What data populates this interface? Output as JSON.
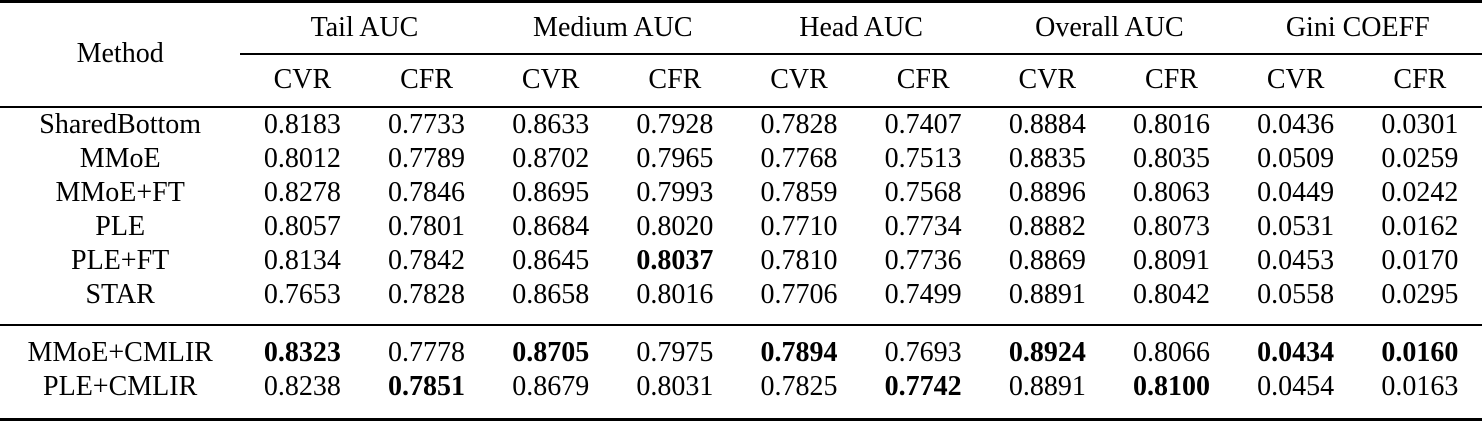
{
  "table": {
    "corner_header": "Method",
    "groups": [
      {
        "label": "Tail AUC"
      },
      {
        "label": "Medium AUC"
      },
      {
        "label": "Head AUC"
      },
      {
        "label": "Overall AUC"
      },
      {
        "label": "Gini COEFF"
      }
    ],
    "subheaders": [
      "CVR",
      "CFR",
      "CVR",
      "CFR",
      "CVR",
      "CFR",
      "CVR",
      "CFR",
      "CVR",
      "CFR"
    ],
    "sections": [
      {
        "rows": [
          {
            "method": "SharedBottom",
            "cells": [
              "0.8183",
              "0.7733",
              "0.8633",
              "0.7928",
              "0.7828",
              "0.7407",
              "0.8884",
              "0.8016",
              "0.0436",
              "0.0301"
            ],
            "bold": []
          },
          {
            "method": "MMoE",
            "cells": [
              "0.8012",
              "0.7789",
              "0.8702",
              "0.7965",
              "0.7768",
              "0.7513",
              "0.8835",
              "0.8035",
              "0.0509",
              "0.0259"
            ],
            "bold": []
          },
          {
            "method": "MMoE+FT",
            "cells": [
              "0.8278",
              "0.7846",
              "0.8695",
              "0.7993",
              "0.7859",
              "0.7568",
              "0.8896",
              "0.8063",
              "0.0449",
              "0.0242"
            ],
            "bold": []
          },
          {
            "method": "PLE",
            "cells": [
              "0.8057",
              "0.7801",
              "0.8684",
              "0.8020",
              "0.7710",
              "0.7734",
              "0.8882",
              "0.8073",
              "0.0531",
              "0.0162"
            ],
            "bold": []
          },
          {
            "method": "PLE+FT",
            "cells": [
              "0.8134",
              "0.7842",
              "0.8645",
              "0.8037",
              "0.7810",
              "0.7736",
              "0.8869",
              "0.8091",
              "0.0453",
              "0.0170"
            ],
            "bold": [
              3
            ]
          },
          {
            "method": "STAR",
            "cells": [
              "0.7653",
              "0.7828",
              "0.8658",
              "0.8016",
              "0.7706",
              "0.7499",
              "0.8891",
              "0.8042",
              "0.0558",
              "0.0295"
            ],
            "bold": []
          }
        ]
      },
      {
        "rows": [
          {
            "method": "MMoE+CMLIR",
            "cells": [
              "0.8323",
              "0.7778",
              "0.8705",
              "0.7975",
              "0.7894",
              "0.7693",
              "0.8924",
              "0.8066",
              "0.0434",
              "0.0160"
            ],
            "bold": [
              0,
              2,
              4,
              6,
              8,
              9
            ]
          },
          {
            "method": "PLE+CMLIR",
            "cells": [
              "0.8238",
              "0.7851",
              "0.8679",
              "0.8031",
              "0.7825",
              "0.7742",
              "0.8891",
              "0.8100",
              "0.0454",
              "0.0163"
            ],
            "bold": [
              1,
              5,
              7
            ]
          }
        ]
      }
    ],
    "text_color": "#000000",
    "background_color": "#ffffff"
  }
}
